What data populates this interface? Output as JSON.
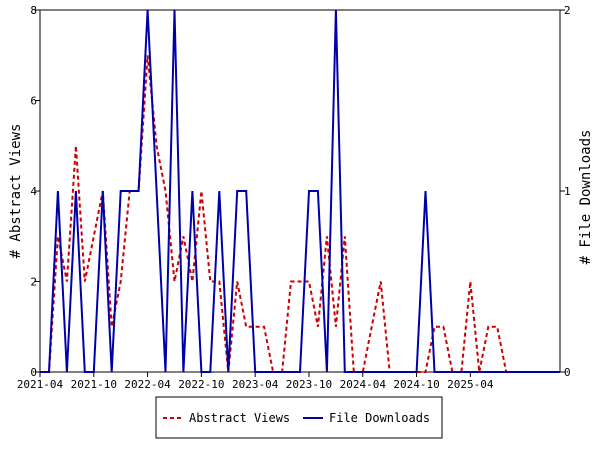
{
  "chart_data": {
    "type": "line",
    "x_tick_labels": [
      "2021-04",
      "2021-10",
      "2022-04",
      "2022-10",
      "2023-04",
      "2023-10",
      "2024-04",
      "2024-10",
      "2025-04"
    ],
    "x_tick_months": [
      0,
      6,
      12,
      18,
      24,
      30,
      36,
      42,
      48
    ],
    "x_range": [
      0,
      58
    ],
    "y_left": {
      "label": "# Abstract Views",
      "range": [
        0,
        8
      ],
      "ticks": [
        0,
        2,
        4,
        6,
        8
      ]
    },
    "y_right": {
      "label": "# File Downloads",
      "range": [
        0,
        2
      ],
      "ticks": [
        0,
        1,
        2
      ]
    },
    "grid": false,
    "legend_position": "bottom",
    "series": [
      {
        "name": "Abstract Views",
        "axis": "left",
        "color": "#cc0000",
        "style": "dashed",
        "x": [
          0,
          1,
          2,
          3,
          4,
          5,
          6,
          7,
          8,
          9,
          10,
          11,
          12,
          13,
          14,
          15,
          16,
          17,
          18,
          19,
          20,
          21,
          22,
          23,
          24,
          25,
          26,
          27,
          28,
          29,
          30,
          31,
          32,
          33,
          34,
          35,
          36,
          37,
          38,
          39,
          40,
          41,
          42,
          43,
          44,
          45,
          46,
          47,
          48,
          49,
          50,
          51,
          52,
          53,
          54,
          55,
          56,
          57,
          58
        ],
        "values": [
          0,
          0,
          3,
          2,
          5,
          2,
          3,
          4,
          1,
          2,
          4,
          4,
          7,
          5,
          4,
          2,
          3,
          2,
          4,
          2,
          2,
          0,
          2,
          1,
          1,
          1,
          0,
          0,
          2,
          2,
          2,
          1,
          3,
          1,
          3,
          0,
          0,
          1,
          2,
          0,
          0,
          0,
          0,
          0,
          1,
          1,
          0,
          0,
          2,
          0,
          1,
          1,
          0,
          0,
          0,
          0,
          0,
          0,
          0
        ]
      },
      {
        "name": "File Downloads",
        "axis": "right",
        "color": "#0000aa",
        "style": "solid",
        "x": [
          0,
          1,
          2,
          3,
          4,
          5,
          6,
          7,
          8,
          9,
          10,
          11,
          12,
          13,
          14,
          15,
          16,
          17,
          18,
          19,
          20,
          21,
          22,
          23,
          24,
          25,
          26,
          27,
          28,
          29,
          30,
          31,
          32,
          33,
          34,
          35,
          36,
          37,
          38,
          39,
          40,
          41,
          42,
          43,
          44,
          45,
          46,
          47,
          48,
          49,
          50,
          51,
          52,
          53,
          54,
          55,
          56,
          57,
          58
        ],
        "values": [
          0,
          0,
          1,
          0,
          1,
          0,
          0,
          1,
          0,
          1,
          1,
          1,
          2,
          1,
          0,
          2,
          0,
          1,
          0,
          0,
          1,
          0,
          1,
          1,
          0,
          0,
          0,
          0,
          0,
          0,
          1,
          1,
          0,
          2,
          0,
          0,
          0,
          0,
          0,
          0,
          0,
          0,
          0,
          1,
          0,
          0,
          0,
          0,
          0,
          0,
          0,
          0,
          0,
          0,
          0,
          0,
          0,
          0,
          0
        ]
      }
    ]
  }
}
